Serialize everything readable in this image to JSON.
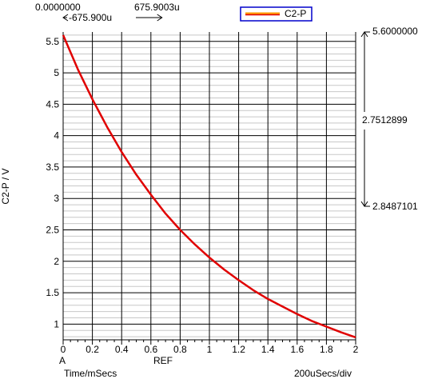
{
  "cursor": {
    "a_value": "0.0000000",
    "b_value": "675.9003u",
    "delta_label": "-675.900u",
    "a_x": 0.0,
    "b_x": 0.6759,
    "right_top": "5.6000000",
    "right_mid": "2.7512899",
    "right_bot": "2.8487101"
  },
  "markers": {
    "a_label": "A",
    "ref_label": "REF"
  },
  "footer": {
    "time_units": "Time/mSecs",
    "per_div": "200uSecs/div"
  },
  "colors": {
    "series": "#e00000",
    "legend_border": "#0000cc",
    "legend_line": "#ff9900"
  },
  "chart_data": {
    "type": "line",
    "ylabel": "C2-P / V",
    "xlim": [
      0,
      2
    ],
    "ylim": [
      0.75,
      5.65
    ],
    "x_ticks": [
      0,
      0.2,
      0.4,
      0.6,
      0.8,
      1,
      1.2,
      1.4,
      1.6,
      1.8,
      2
    ],
    "x_tick_labels": [
      "0",
      "0.2",
      "0.4",
      "0.6",
      "0.8",
      "1",
      "1.2",
      "1.4",
      "1.6",
      "1.8",
      "2"
    ],
    "y_ticks": [
      1,
      1.5,
      2,
      2.5,
      3,
      3.5,
      4,
      4.5,
      5,
      5.5
    ],
    "y_tick_labels": [
      "1",
      "1.5",
      "2",
      "2.5",
      "3",
      "3.5",
      "4",
      "4.5",
      "5",
      "5.5"
    ],
    "grid": true,
    "legend_position": "top-center",
    "series": [
      {
        "name": "C2-P",
        "x": [
          0,
          0.1,
          0.2,
          0.3,
          0.4,
          0.5,
          0.6,
          0.7,
          0.8,
          0.9,
          1.0,
          1.1,
          1.2,
          1.3,
          1.4,
          1.5,
          1.6,
          1.7,
          1.8,
          1.9,
          2.0
        ],
        "y": [
          5.6,
          5.06,
          4.58,
          4.14,
          3.74,
          3.38,
          3.06,
          2.76,
          2.5,
          2.27,
          2.06,
          1.87,
          1.7,
          1.54,
          1.4,
          1.28,
          1.16,
          1.05,
          0.96,
          0.87,
          0.79
        ]
      }
    ]
  }
}
